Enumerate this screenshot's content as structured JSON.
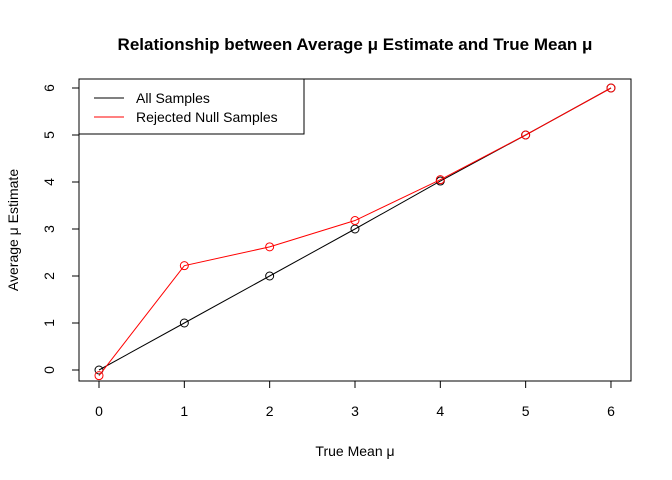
{
  "chart_data": {
    "type": "line",
    "title": "Relationship between Average μ Estimate and True Mean μ",
    "xlabel": "True Mean μ",
    "ylabel": "Average μ Estimate",
    "x": [
      0,
      1,
      2,
      3,
      4,
      5,
      6
    ],
    "xlim": [
      0,
      6
    ],
    "ylim": [
      -0.1,
      6
    ],
    "xticks": [
      "0",
      "1",
      "2",
      "3",
      "4",
      "5",
      "6"
    ],
    "yticks": [
      "0",
      "1",
      "2",
      "3",
      "4",
      "5",
      "6"
    ],
    "grid": false,
    "legend_position": "top-left",
    "series": [
      {
        "name": "All Samples",
        "color": "#000000",
        "marker": "open-circle",
        "values": [
          0.0,
          1.0,
          2.0,
          3.0,
          4.02,
          5.0,
          6.0
        ]
      },
      {
        "name": "Rejected Null Samples",
        "color": "#ff0000",
        "marker": "open-circle",
        "values": [
          -0.12,
          2.22,
          2.62,
          3.18,
          4.05,
          5.0,
          6.0
        ]
      }
    ]
  }
}
